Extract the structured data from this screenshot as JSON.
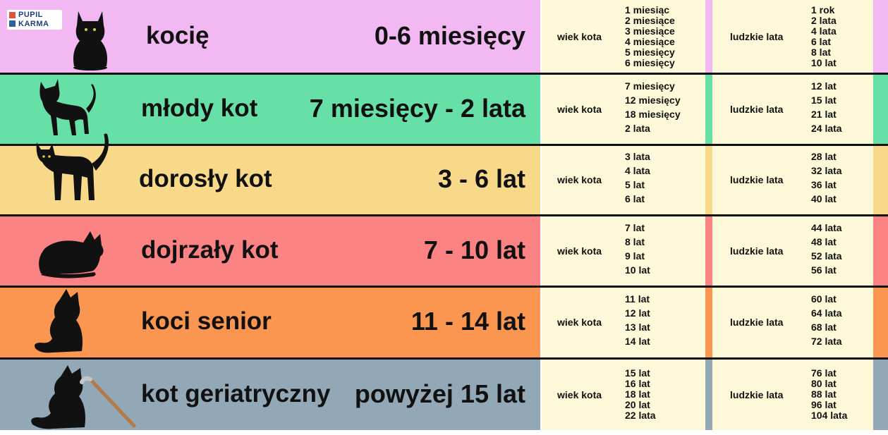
{
  "logo": {
    "line1": "PUPIL",
    "line2": "KARMA"
  },
  "rows": [
    {
      "label": "kocię",
      "range": "0-6 miesięcy",
      "color": "#f2b8f2",
      "cat_header": "wiek kota",
      "human_header": "ludzkie lata",
      "cat_ages": [
        "1 miesiąc",
        "2 miesiące",
        "3 miesiące",
        "4 miesiące",
        "5 miesięcy",
        "6 miesięcy"
      ],
      "human_ages": [
        "1 rok",
        "2 lata",
        "4 lata",
        "6 lat",
        "8 lat",
        "10 lat"
      ]
    },
    {
      "label": "młody kot",
      "range": "7 miesięcy - 2 lata",
      "color": "#66e0a6",
      "cat_header": "wiek kota",
      "human_header": "ludzkie lata",
      "cat_ages": [
        "7 miesięcy",
        "12 miesięcy",
        "18 miesięcy",
        "2 lata"
      ],
      "human_ages": [
        "12 lat",
        "15 lat",
        "21 lat",
        "24 lata"
      ]
    },
    {
      "label": "dorosły kot",
      "range": "3 - 6 lat",
      "color": "#f8d98a",
      "cat_header": "wiek kota",
      "human_header": "ludzkie lata",
      "cat_ages": [
        "3 lata",
        "4 lata",
        "5 lat",
        "6 lat"
      ],
      "human_ages": [
        "28 lat",
        "32 lata",
        "36 lat",
        "40 lat"
      ]
    },
    {
      "label": "dojrzały kot",
      "range": "7 - 10 lat",
      "color": "#fb8383",
      "cat_header": "wiek kota",
      "human_header": "ludzkie lata",
      "cat_ages": [
        "7 lat",
        "8 lat",
        "9 lat",
        "10 lat"
      ],
      "human_ages": [
        "44 lata",
        "48 lat",
        "52 lata",
        "56 lat"
      ]
    },
    {
      "label": "koci senior",
      "range": "11 - 14 lat",
      "color": "#fa9650",
      "cat_header": "wiek kota",
      "human_header": "ludzkie lata",
      "cat_ages": [
        "11 lat",
        "12 lat",
        "13 lat",
        "14 lat"
      ],
      "human_ages": [
        "60 lat",
        "64 lata",
        "68 lat",
        "72 lata"
      ]
    },
    {
      "label": "kot geriatryczny",
      "range": "powyżej 15 lat",
      "color": "#93a8b6",
      "cat_header": "wiek kota",
      "human_header": "ludzkie lata",
      "cat_ages": [
        "15 lat",
        "16 lat",
        "18 lat",
        "20 lat",
        "22 lata"
      ],
      "human_ages": [
        "76 lat",
        "80 lat",
        "88 lat",
        "96 lat",
        "104 lata"
      ]
    }
  ],
  "icons": [
    "cat-sitting-icon",
    "cat-walking-icon",
    "cat-standing-icon",
    "cat-lying-icon",
    "cat-fluffy-icon",
    "cat-old-cane-icon"
  ]
}
